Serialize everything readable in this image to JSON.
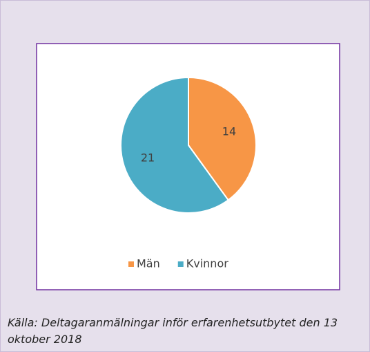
{
  "chart_data": {
    "type": "pie",
    "categories": [
      "Män",
      "Kvinnor"
    ],
    "values": [
      14,
      21
    ],
    "colors": [
      "#f79646",
      "#4bacc6"
    ],
    "legend": "bottom"
  },
  "source": "Källa: Deltagaranmälningar inför erfarenhetsutbytet den 13 oktober 2018"
}
